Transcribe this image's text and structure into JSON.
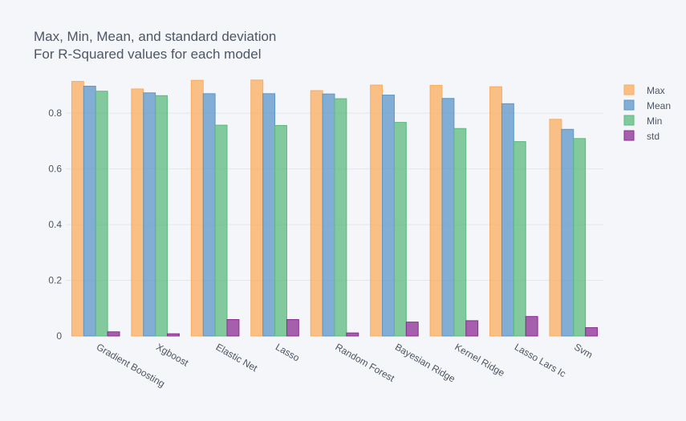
{
  "chart_data": {
    "type": "bar",
    "title_lines": [
      "Max, Min, Mean, and standard deviation",
      "For R-Squared values for each model"
    ],
    "xlabel": "",
    "ylabel": "",
    "ylim": [
      0,
      0.93
    ],
    "yticks": [
      0,
      0.2,
      0.4,
      0.6,
      0.8
    ],
    "ytick_labels": [
      "0",
      "0.2",
      "0.4",
      "0.6",
      "0.8"
    ],
    "grid": true,
    "legend_position": "top-right",
    "categories": [
      "Gradient Boosting",
      "Xgboost",
      "Elastic Net",
      "Lasso",
      "Random Forest",
      "Bayesian Ridge",
      "Kernel Ridge",
      "Lasso Lars Ic",
      "Svm"
    ],
    "series": [
      {
        "name": "Max",
        "color": "#f9ac5d",
        "values": [
          0.914,
          0.887,
          0.918,
          0.919,
          0.881,
          0.901,
          0.9,
          0.895,
          0.778
        ]
      },
      {
        "name": "Mean",
        "color": "#5b96c8",
        "values": [
          0.897,
          0.873,
          0.87,
          0.87,
          0.869,
          0.865,
          0.853,
          0.834,
          0.742
        ]
      },
      {
        "name": "Min",
        "color": "#5bba7f",
        "values": [
          0.879,
          0.863,
          0.757,
          0.756,
          0.852,
          0.767,
          0.745,
          0.698,
          0.709
        ]
      },
      {
        "name": "std",
        "color": "#8b2c91",
        "values": [
          0.015,
          0.008,
          0.059,
          0.059,
          0.011,
          0.05,
          0.055,
          0.07,
          0.03
        ]
      }
    ]
  }
}
